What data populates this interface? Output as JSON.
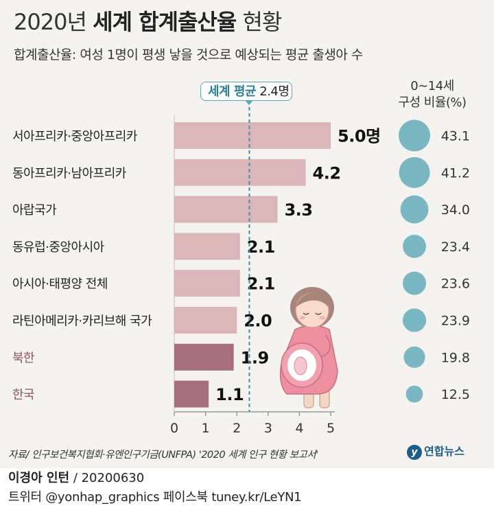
{
  "title": {
    "part1": "2020년",
    "part2": "세계 합계출산율",
    "part3": "현황"
  },
  "subtitle": "합계출산율: 여성 1명이 평생 낳을 것으로 예상되는 평균 출생아 수",
  "average": {
    "label": "세계 평균",
    "value_text": "2.4명",
    "value": 2.4
  },
  "ratio_header": {
    "line1": "0∼14세",
    "line2": "구성 비율(%)"
  },
  "colors": {
    "background": "#f4f3ef",
    "bar": "#dbb6b9",
    "bar_highlight": "#a57079",
    "label_highlight": "#8b5660",
    "circle": "#7ab7c3",
    "average_line": "#3a8fb0",
    "axis": "#888888"
  },
  "chart_data": {
    "type": "bar",
    "orientation": "horizontal",
    "categories": [
      "서아프리카·중앙아프리카",
      "동아프리카·남아프리카",
      "아랍국가",
      "동유럽·중앙아시아",
      "아시아·태평양 전체",
      "라틴아메리카·카리브해 국가",
      "북한",
      "한국"
    ],
    "values": [
      5.0,
      4.2,
      3.3,
      2.1,
      2.1,
      2.0,
      1.9,
      1.1
    ],
    "value_labels": [
      "5.0명",
      "4.2",
      "3.3",
      "2.1",
      "2.1",
      "2.0",
      "1.9",
      "1.1"
    ],
    "highlighted": [
      false,
      false,
      false,
      false,
      false,
      false,
      true,
      true
    ],
    "ratio_values": [
      43.1,
      41.2,
      34.0,
      23.4,
      23.6,
      23.9,
      19.8,
      12.5
    ],
    "ratio_labels": [
      "43.1",
      "41.2",
      "34.0",
      "23.4",
      "23.6",
      "23.9",
      "19.8",
      "12.5"
    ],
    "x_ticks": [
      "0",
      "1",
      "2",
      "3",
      "4",
      "5"
    ],
    "xlim": [
      0,
      5
    ],
    "reference_line": 2.4
  },
  "source": "자료/ 인구보건복지협회·유엔인구기금(UNFPA) '2020 세계 인구 현황 보고서'",
  "logo": {
    "mark": "y",
    "text": "연합뉴스"
  },
  "credit": {
    "author": "이경아 인턴",
    "date": "/ 20200630"
  },
  "social": "트위터 @yonhap_graphics  페이스북 tuney.kr/LeYN1"
}
